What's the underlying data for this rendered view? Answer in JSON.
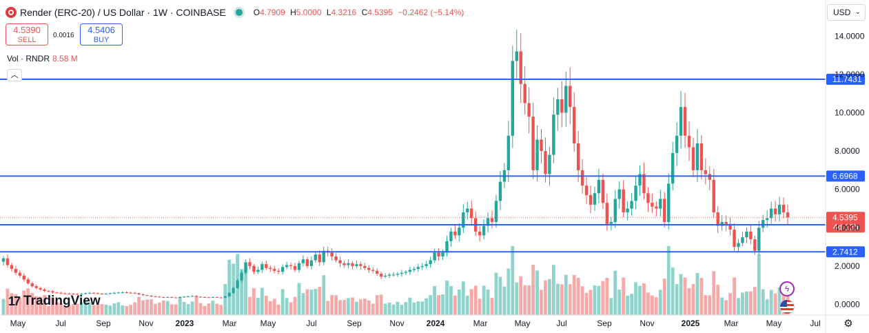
{
  "header": {
    "title": "Render (ERC-20) / US Dollar · 1W · COINBASE",
    "open_label": "O",
    "open": "4.7909",
    "high_label": "H",
    "high": "5.0000",
    "low_label": "L",
    "low": "4.3216",
    "close_label": "C",
    "close": "4.5395",
    "change": "−0.2462 (−5.14%)"
  },
  "trade": {
    "sell_price": "4.5390",
    "sell_label": "SELL",
    "spread": "0.0016",
    "buy_price": "4.5406",
    "buy_label": "BUY"
  },
  "volume": {
    "label": "Vol · RNDR",
    "value": "8.58 M"
  },
  "currency": {
    "label": "USD"
  },
  "branding": {
    "name": "TradingView"
  },
  "icons": {
    "collapse": "chevron-up-icon",
    "flash": "lightning-icon",
    "flag": "us-flag-icon",
    "settings": "gear-icon"
  },
  "colors": {
    "up": "#26a69a",
    "down": "#ef5350",
    "level": "#2962ff",
    "up_volume": "#8fd3cb",
    "down_volume": "#f7a9a7"
  },
  "chart_data": {
    "type": "candlestick",
    "price_axis": {
      "ticks": [
        0,
        2,
        4,
        6,
        8,
        10,
        12,
        14
      ],
      "tick_labels": [
        "0.0000",
        "2.0000",
        "4.0000",
        "6.0000",
        "8.0000",
        "10.0000",
        "12.0000",
        "14.0000"
      ],
      "position": "right"
    },
    "time_axis": [
      "May",
      "Jul",
      "Sep",
      "Nov",
      "2023",
      "Mar",
      "May",
      "Jul",
      "Sep",
      "Nov",
      "2024",
      "Mar",
      "May",
      "Jul",
      "Sep",
      "Nov",
      "2025",
      "Mar",
      "May",
      "Jul"
    ],
    "horizontal_levels": [
      {
        "value": 11.7431,
        "label": "11.7431"
      },
      {
        "value": 6.6968,
        "label": "6.6968"
      },
      {
        "value": 4.1557,
        "label": "4.1557"
      },
      {
        "value": 2.7412,
        "label": "2.7412"
      }
    ],
    "last_price": {
      "value": 4.5395,
      "label": "4.5395",
      "countdown": "4d 12h"
    },
    "closes": [
      2.4,
      2.05,
      1.85,
      1.65,
      1.5,
      1.3,
      1.1,
      0.95,
      0.85,
      0.78,
      0.7,
      0.68,
      0.62,
      0.6,
      0.58,
      0.56,
      0.55,
      0.54,
      0.52,
      0.55,
      0.58,
      0.6,
      0.58,
      0.56,
      0.55,
      0.56,
      0.58,
      0.6,
      0.62,
      0.63,
      0.61,
      0.6,
      0.58,
      0.52,
      0.48,
      0.45,
      0.42,
      0.4,
      0.38,
      0.36,
      0.38,
      0.36,
      0.35,
      0.38,
      0.4,
      0.42,
      0.44,
      0.4,
      0.38,
      0.37,
      0.36,
      0.38,
      0.36,
      0.35,
      0.42,
      0.6,
      0.85,
      1.25,
      1.65,
      2.2,
      2.0,
      1.7,
      1.8,
      2.1,
      1.9,
      1.85,
      1.75,
      1.7,
      1.95,
      2.05,
      2.0,
      1.8,
      2.15,
      2.35,
      2.0,
      2.3,
      2.6,
      2.2,
      2.8,
      2.7,
      2.5,
      2.3,
      2.15,
      2.05,
      2.15,
      2.0,
      2.1,
      2.0,
      1.9,
      1.8,
      1.75,
      1.6,
      1.45,
      1.5,
      1.55,
      1.55,
      1.6,
      1.65,
      1.7,
      1.8,
      1.85,
      1.95,
      2.0,
      2.1,
      2.3,
      2.7,
      2.5,
      2.7,
      3.3,
      3.8,
      3.6,
      4.0,
      4.8,
      5.0,
      4.5,
      3.8,
      3.6,
      4.1,
      4.5,
      4.3,
      5.4,
      6.4,
      7.0,
      8.8,
      12.7,
      13.2,
      11.5,
      10.5,
      9.8,
      7.0,
      8.6,
      8.0,
      6.8,
      7.8,
      9.9,
      10.7,
      10.0,
      11.4,
      10.3,
      8.4,
      7.0,
      6.2,
      5.7,
      5.2,
      5.8,
      6.5,
      5.3,
      4.2,
      4.3,
      5.5,
      6.0,
      4.8,
      5.0,
      5.4,
      6.2,
      6.8,
      5.8,
      5.3,
      5.1,
      5.0,
      5.5,
      4.3,
      6.3,
      7.9,
      8.8,
      10.3,
      8.8,
      8.2,
      7.0,
      8.4,
      7.0,
      6.8,
      6.5,
      4.8,
      4.1,
      4.3,
      4.2,
      3.9,
      3.0,
      3.2,
      3.5,
      3.8,
      3.4,
      2.8,
      4.0,
      4.4,
      4.5,
      5.0,
      4.7,
      5.2,
      4.8,
      4.54
    ]
  }
}
